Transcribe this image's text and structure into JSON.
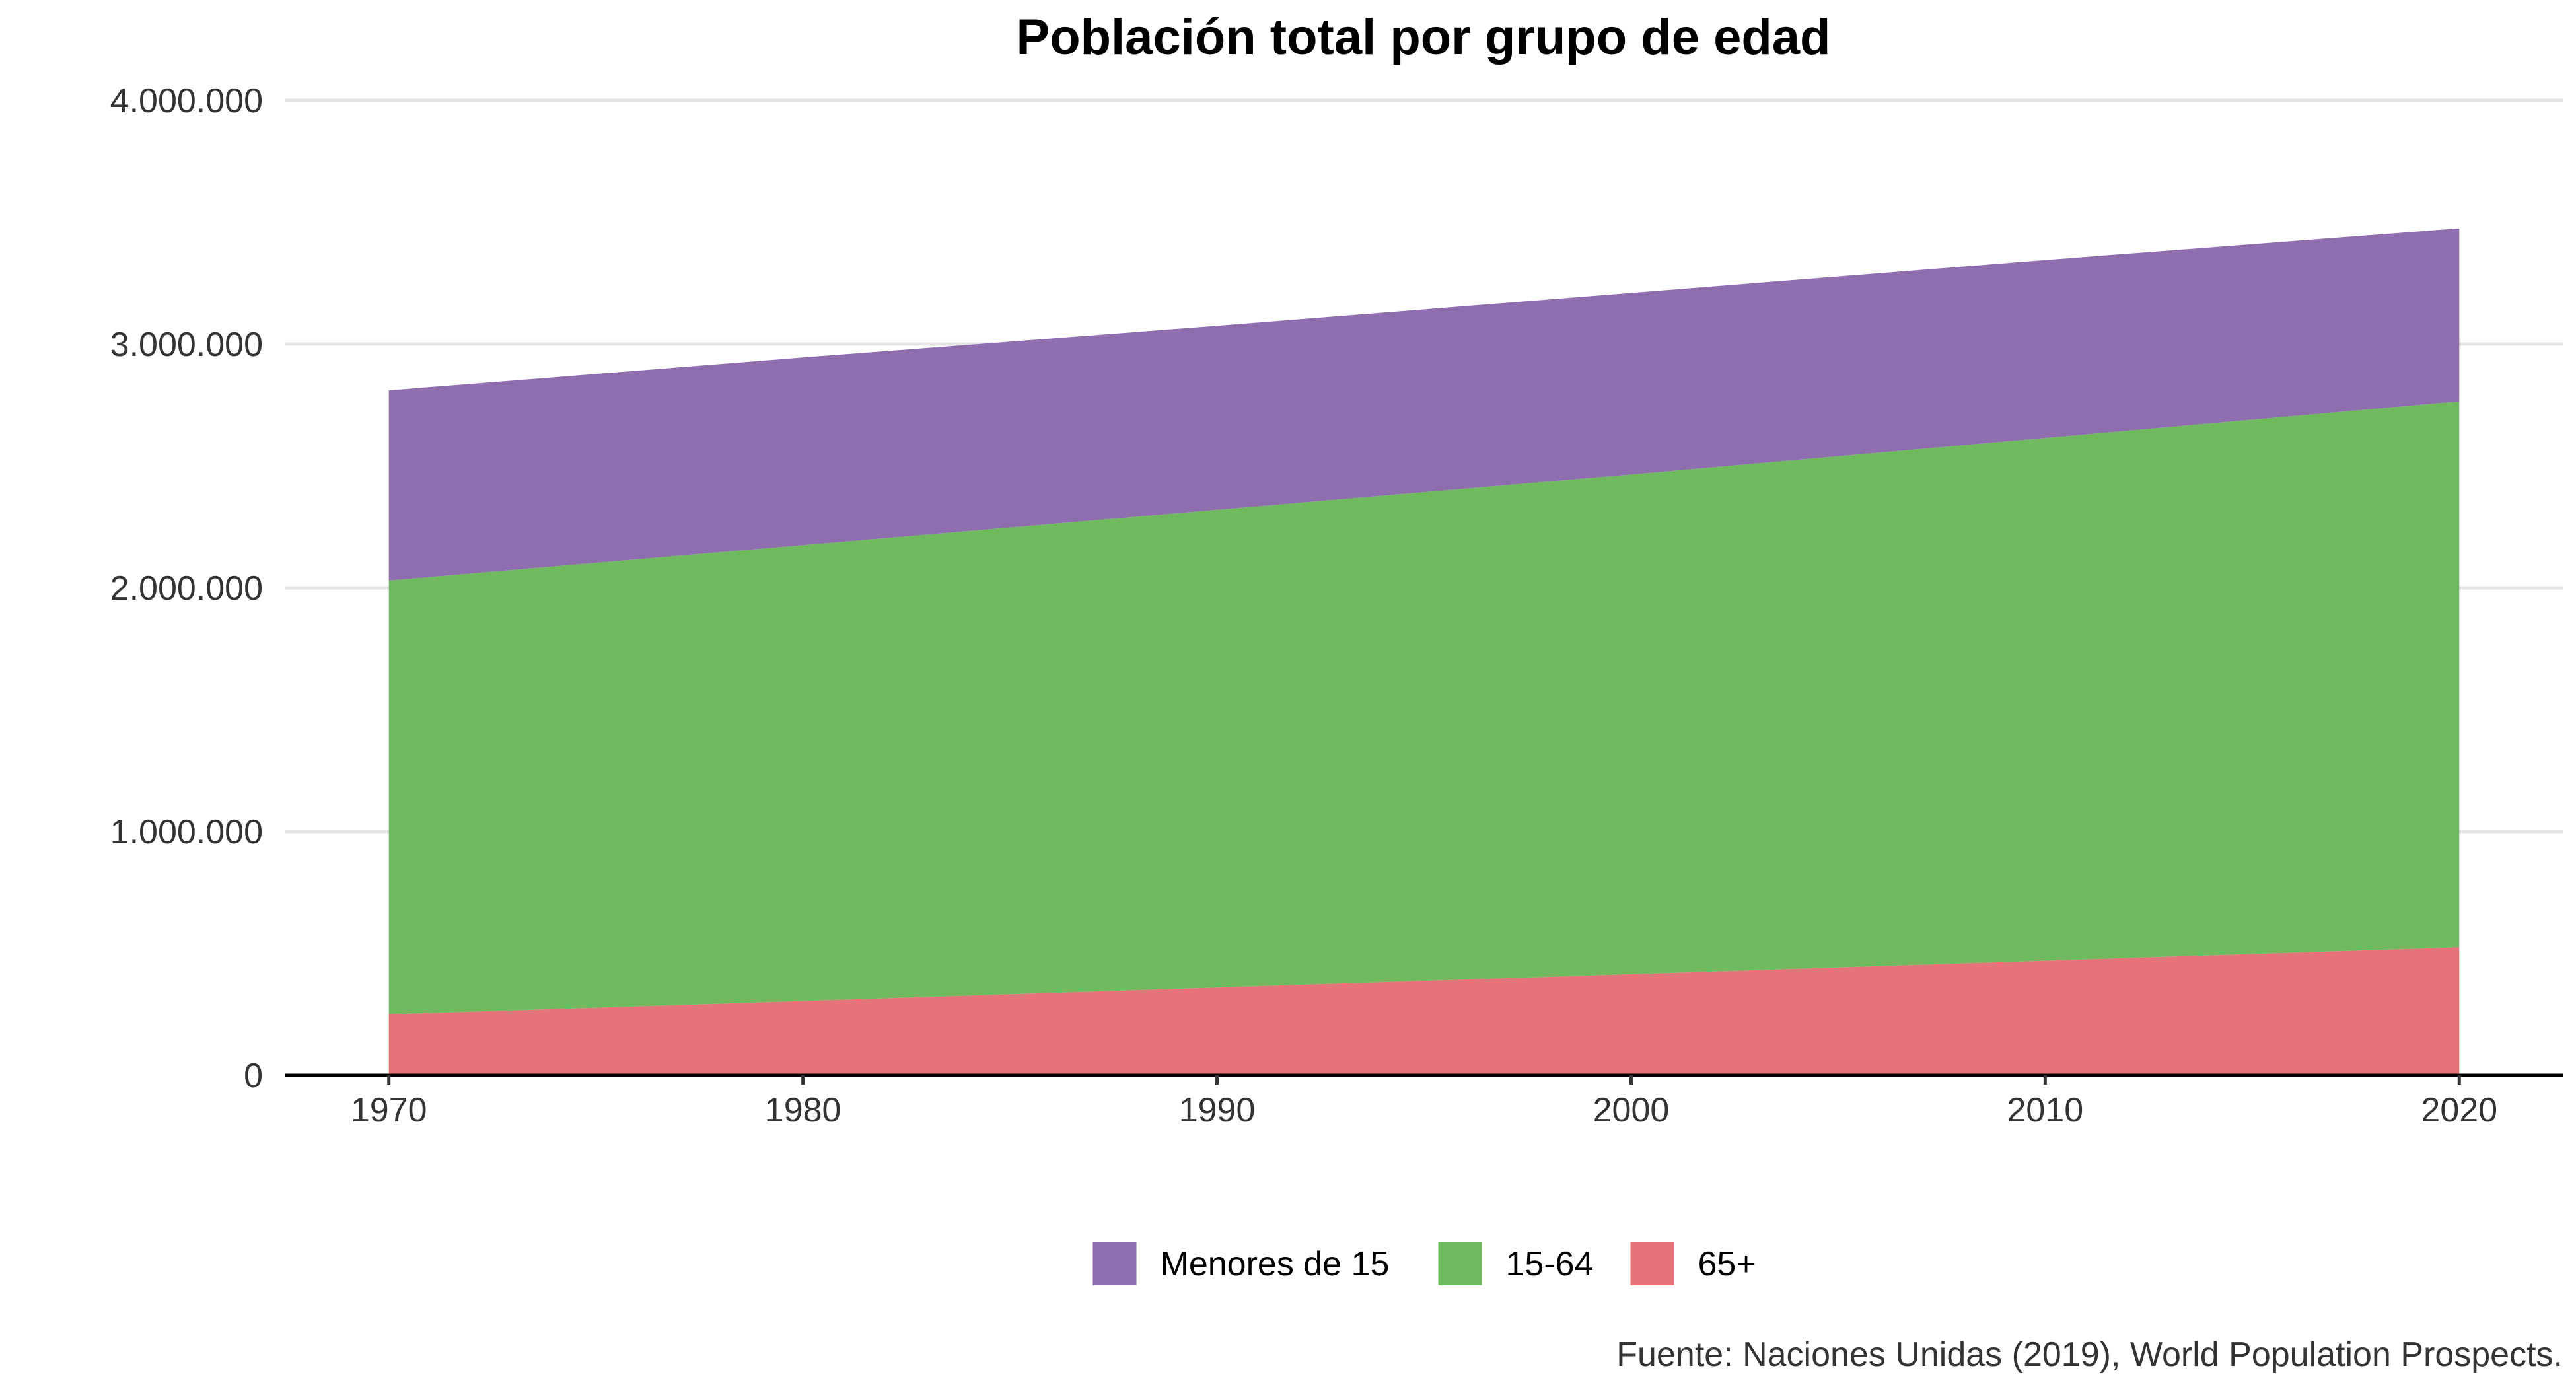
{
  "chart_data": {
    "type": "area",
    "stacked": true,
    "title": "Población total por grupo de edad",
    "xlabel": "",
    "ylabel": "",
    "x": [
      1970,
      1980,
      1990,
      2000,
      2010,
      2020
    ],
    "x_ticks": [
      "1970",
      "1980",
      "1990",
      "2000",
      "2010",
      "2020"
    ],
    "xlim": [
      1967.5,
      2022.5
    ],
    "ylim": [
      0,
      4000000
    ],
    "y_ticks": [
      {
        "value": 0,
        "label": "0"
      },
      {
        "value": 1000000,
        "label": "1.000.000"
      },
      {
        "value": 2000000,
        "label": "2.000.000"
      },
      {
        "value": 3000000,
        "label": "3.000.000"
      },
      {
        "value": 4000000,
        "label": "4.000.000"
      }
    ],
    "grid": "horizontal",
    "legend_position": "bottom",
    "series": [
      {
        "name": "65+",
        "color": "#e6737a",
        "values": [
          250000,
          305000,
          360000,
          415000,
          470000,
          525000
        ]
      },
      {
        "name": "15-64",
        "color": "#6fba5f",
        "values": [
          1780000,
          1870000,
          1960000,
          2050000,
          2145000,
          2240000
        ]
      },
      {
        "name": "Menores de 15",
        "color": "#8e6eae",
        "values": [
          780000,
          770000,
          755000,
          745000,
          730000,
          710000
        ]
      }
    ],
    "legend_order": [
      "Menores de 15",
      "15-64",
      "65+"
    ],
    "caption": "Fuente: Naciones Unidas (2019), World Population Prospects."
  }
}
